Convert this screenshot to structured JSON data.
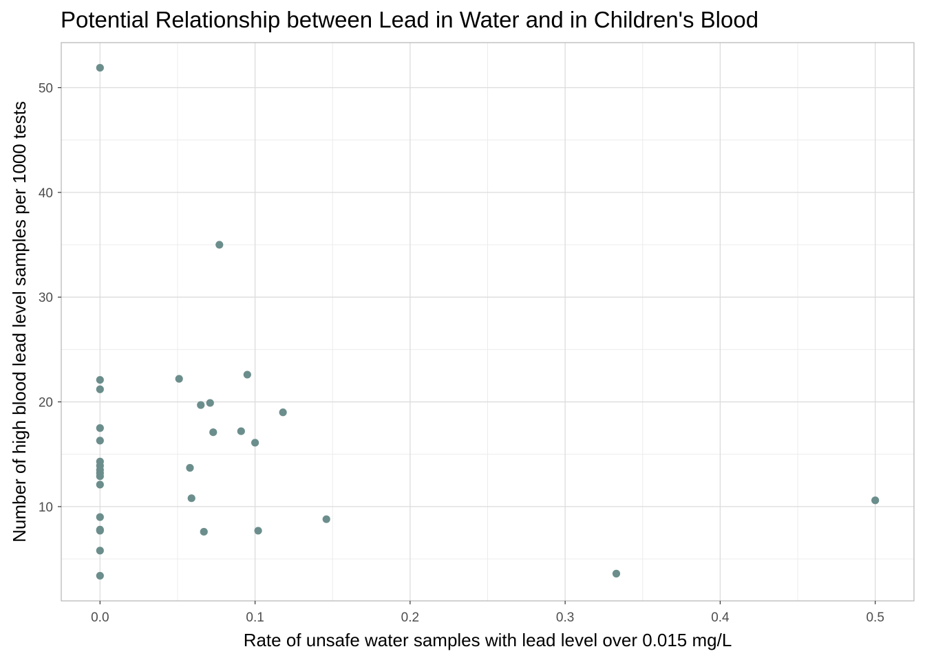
{
  "chart_data": {
    "type": "scatter",
    "title": "Potential Relationship between Lead in Water and in Children's Blood",
    "xlabel": "Rate of unsafe water samples with lead level over 0.015 mg/L",
    "ylabel": "Number of high blood lead level samples per 1000 tests",
    "xlim": [
      -0.025,
      0.525
    ],
    "ylim": [
      1.0,
      54.3
    ],
    "x_ticks": [
      0.0,
      0.1,
      0.2,
      0.3,
      0.4,
      0.5
    ],
    "x_tick_labels": [
      "0.0",
      "0.1",
      "0.2",
      "0.3",
      "0.4",
      "0.5"
    ],
    "y_ticks": [
      10,
      20,
      30,
      40,
      50
    ],
    "y_tick_labels": [
      "10",
      "20",
      "30",
      "40",
      "50"
    ],
    "grid": true,
    "point_color": "#6b8e8c",
    "points": [
      {
        "x": 0.0,
        "y": 51.9
      },
      {
        "x": 0.0,
        "y": 22.1
      },
      {
        "x": 0.0,
        "y": 21.2
      },
      {
        "x": 0.0,
        "y": 17.5
      },
      {
        "x": 0.0,
        "y": 16.3
      },
      {
        "x": 0.0,
        "y": 14.3
      },
      {
        "x": 0.0,
        "y": 13.9
      },
      {
        "x": 0.0,
        "y": 13.5
      },
      {
        "x": 0.0,
        "y": 13.2
      },
      {
        "x": 0.0,
        "y": 12.9
      },
      {
        "x": 0.0,
        "y": 12.1
      },
      {
        "x": 0.0,
        "y": 9.0
      },
      {
        "x": 0.0,
        "y": 7.8
      },
      {
        "x": 0.0,
        "y": 7.7
      },
      {
        "x": 0.0,
        "y": 5.8
      },
      {
        "x": 0.0,
        "y": 3.4
      },
      {
        "x": 0.051,
        "y": 22.2
      },
      {
        "x": 0.058,
        "y": 13.7
      },
      {
        "x": 0.059,
        "y": 10.8
      },
      {
        "x": 0.065,
        "y": 19.7
      },
      {
        "x": 0.067,
        "y": 7.6
      },
      {
        "x": 0.071,
        "y": 19.9
      },
      {
        "x": 0.073,
        "y": 17.1
      },
      {
        "x": 0.077,
        "y": 35.0
      },
      {
        "x": 0.091,
        "y": 17.2
      },
      {
        "x": 0.095,
        "y": 22.6
      },
      {
        "x": 0.1,
        "y": 16.1
      },
      {
        "x": 0.102,
        "y": 7.7
      },
      {
        "x": 0.118,
        "y": 19.0
      },
      {
        "x": 0.146,
        "y": 8.8
      },
      {
        "x": 0.333,
        "y": 3.6
      },
      {
        "x": 0.5,
        "y": 10.6
      }
    ]
  }
}
